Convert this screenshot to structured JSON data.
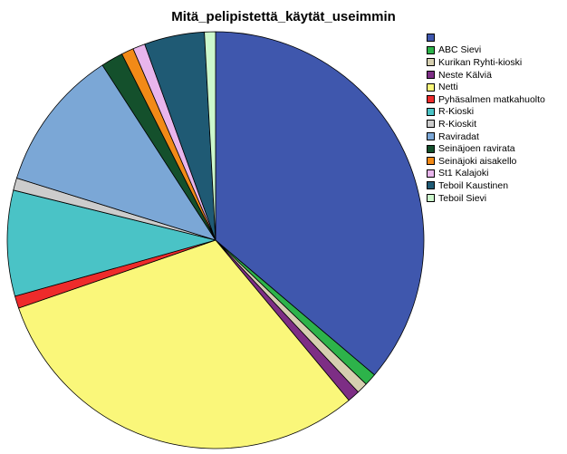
{
  "chart_data": {
    "type": "pie",
    "title": "Mitä_pelipistettä_käytät_useimmin",
    "legend_position": "right",
    "slices": [
      {
        "label": "",
        "value": 38.0,
        "color": "#3f57ad"
      },
      {
        "label": "ABC Sievi",
        "value": 1.0,
        "color": "#2db34a"
      },
      {
        "label": "Kurikan Ryhti-kioski",
        "value": 0.9,
        "color": "#d6cfb0"
      },
      {
        "label": "Neste Kälviä",
        "value": 1.0,
        "color": "#7d2e85"
      },
      {
        "label": "Netti",
        "value": 32.3,
        "color": "#faf77a"
      },
      {
        "label": "Pyhäsalmen matkahuolto",
        "value": 1.0,
        "color": "#ee2b2b"
      },
      {
        "label": "R-Kioski",
        "value": 8.6,
        "color": "#4ac3c6"
      },
      {
        "label": "R-Kioskit",
        "value": 1.0,
        "color": "#cccccc"
      },
      {
        "label": "Raviradat",
        "value": 11.6,
        "color": "#7ba7d6"
      },
      {
        "label": "Seinäjoen ravirata",
        "value": 1.8,
        "color": "#14502c"
      },
      {
        "label": "Seinäjoki aisakello",
        "value": 1.0,
        "color": "#f28a17"
      },
      {
        "label": "St1 Kalajoki",
        "value": 1.0,
        "color": "#e8b5ec"
      },
      {
        "label": "Teboil Kaustinen",
        "value": 4.9,
        "color": "#1f5a74"
      },
      {
        "label": "Teboil Sievi",
        "value": 0.9,
        "color": "#ccf8cc"
      }
    ]
  }
}
